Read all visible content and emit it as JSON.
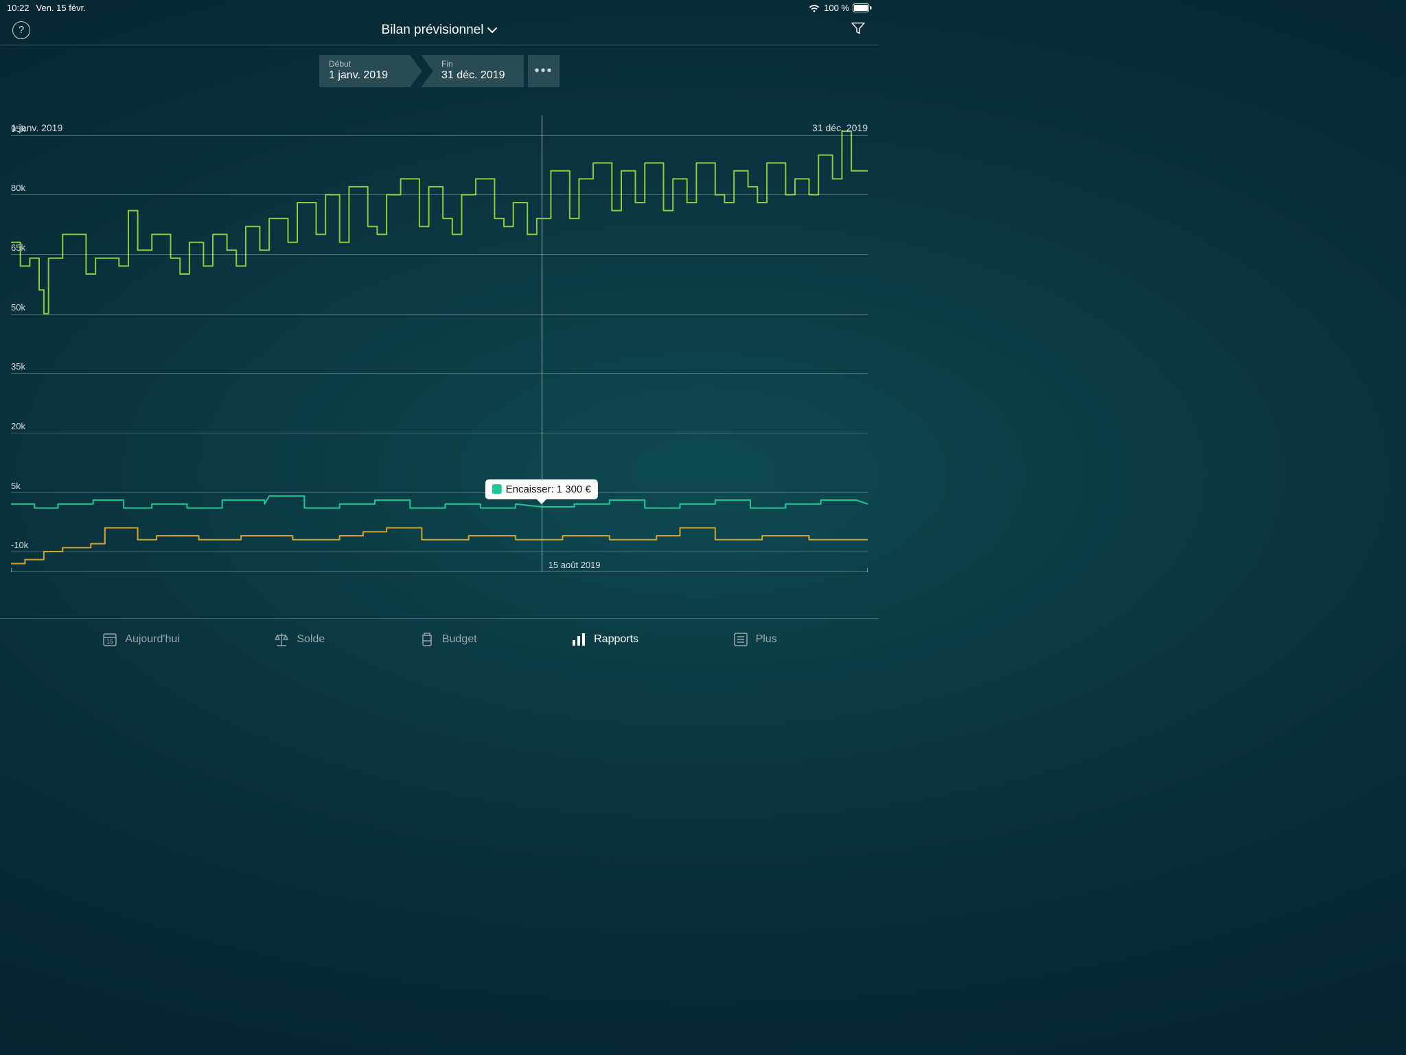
{
  "status": {
    "time": "10:22",
    "date": "Ven. 15 févr.",
    "battery_pct": "100 %"
  },
  "header": {
    "title": "Bilan prévisionnel"
  },
  "date_range": {
    "start_label": "Début",
    "start_value": "1 janv. 2019",
    "end_label": "Fin",
    "end_value": "31 déc. 2019"
  },
  "chart": {
    "type": "line",
    "background": "transparent",
    "grid_color": "rgba(205,214,217,0.35)",
    "y_axis": {
      "ticks": [
        95,
        80,
        65,
        50,
        35,
        20,
        5,
        -10
      ],
      "labels": [
        "95k",
        "80k",
        "65k",
        "50k",
        "35k",
        "20k",
        "5k",
        "-10k"
      ],
      "min": -15,
      "max": 100
    },
    "x_axis": {
      "min": 0,
      "max": 365,
      "start_label": "1 janv. 2019",
      "end_label": "31 déc. 2019"
    },
    "cursor": {
      "x_day": 226,
      "date_label": "15 août 2019"
    },
    "tooltip": {
      "swatch_color": "#1ec996",
      "label": "Encaisser: 1 300 €",
      "y_value": 1.3
    },
    "series": [
      {
        "name": "balance",
        "color": "#8ecb3a",
        "width": 2,
        "data": [
          [
            0,
            68
          ],
          [
            4,
            68
          ],
          [
            4,
            62
          ],
          [
            8,
            62
          ],
          [
            8,
            64
          ],
          [
            12,
            64
          ],
          [
            12,
            56
          ],
          [
            14,
            56
          ],
          [
            14,
            50
          ],
          [
            16,
            50
          ],
          [
            16,
            64
          ],
          [
            22,
            64
          ],
          [
            22,
            70
          ],
          [
            32,
            70
          ],
          [
            32,
            60
          ],
          [
            36,
            60
          ],
          [
            36,
            64
          ],
          [
            46,
            64
          ],
          [
            46,
            62
          ],
          [
            50,
            62
          ],
          [
            50,
            76
          ],
          [
            54,
            76
          ],
          [
            54,
            66
          ],
          [
            60,
            66
          ],
          [
            60,
            70
          ],
          [
            68,
            70
          ],
          [
            68,
            64
          ],
          [
            72,
            64
          ],
          [
            72,
            60
          ],
          [
            76,
            60
          ],
          [
            76,
            68
          ],
          [
            82,
            68
          ],
          [
            82,
            62
          ],
          [
            86,
            62
          ],
          [
            86,
            70
          ],
          [
            92,
            70
          ],
          [
            92,
            66
          ],
          [
            96,
            66
          ],
          [
            96,
            62
          ],
          [
            100,
            62
          ],
          [
            100,
            72
          ],
          [
            106,
            72
          ],
          [
            106,
            66
          ],
          [
            110,
            66
          ],
          [
            110,
            74
          ],
          [
            118,
            74
          ],
          [
            118,
            68
          ],
          [
            122,
            68
          ],
          [
            122,
            78
          ],
          [
            130,
            78
          ],
          [
            130,
            70
          ],
          [
            134,
            70
          ],
          [
            134,
            80
          ],
          [
            140,
            80
          ],
          [
            140,
            68
          ],
          [
            144,
            68
          ],
          [
            144,
            82
          ],
          [
            152,
            82
          ],
          [
            152,
            72
          ],
          [
            156,
            72
          ],
          [
            156,
            70
          ],
          [
            160,
            70
          ],
          [
            160,
            80
          ],
          [
            166,
            80
          ],
          [
            166,
            84
          ],
          [
            174,
            84
          ],
          [
            174,
            72
          ],
          [
            178,
            72
          ],
          [
            178,
            82
          ],
          [
            184,
            82
          ],
          [
            184,
            74
          ],
          [
            188,
            74
          ],
          [
            188,
            70
          ],
          [
            192,
            70
          ],
          [
            192,
            80
          ],
          [
            198,
            80
          ],
          [
            198,
            84
          ],
          [
            206,
            84
          ],
          [
            206,
            74
          ],
          [
            210,
            74
          ],
          [
            210,
            72
          ],
          [
            214,
            72
          ],
          [
            214,
            78
          ],
          [
            220,
            78
          ],
          [
            220,
            70
          ],
          [
            224,
            70
          ],
          [
            224,
            74
          ],
          [
            230,
            74
          ],
          [
            230,
            86
          ],
          [
            238,
            86
          ],
          [
            238,
            74
          ],
          [
            242,
            74
          ],
          [
            242,
            84
          ],
          [
            248,
            84
          ],
          [
            248,
            88
          ],
          [
            256,
            88
          ],
          [
            256,
            76
          ],
          [
            260,
            76
          ],
          [
            260,
            86
          ],
          [
            266,
            86
          ],
          [
            266,
            78
          ],
          [
            270,
            78
          ],
          [
            270,
            88
          ],
          [
            278,
            88
          ],
          [
            278,
            76
          ],
          [
            282,
            76
          ],
          [
            282,
            84
          ],
          [
            288,
            84
          ],
          [
            288,
            78
          ],
          [
            292,
            78
          ],
          [
            292,
            88
          ],
          [
            300,
            88
          ],
          [
            300,
            80
          ],
          [
            304,
            80
          ],
          [
            304,
            78
          ],
          [
            308,
            78
          ],
          [
            308,
            86
          ],
          [
            314,
            86
          ],
          [
            314,
            82
          ],
          [
            318,
            82
          ],
          [
            318,
            78
          ],
          [
            322,
            78
          ],
          [
            322,
            88
          ],
          [
            330,
            88
          ],
          [
            330,
            80
          ],
          [
            334,
            80
          ],
          [
            334,
            84
          ],
          [
            340,
            84
          ],
          [
            340,
            80
          ],
          [
            344,
            80
          ],
          [
            344,
            90
          ],
          [
            350,
            90
          ],
          [
            350,
            84
          ],
          [
            354,
            84
          ],
          [
            354,
            96
          ],
          [
            358,
            96
          ],
          [
            358,
            86
          ],
          [
            365,
            86
          ]
        ]
      },
      {
        "name": "cash_in",
        "color": "#1ec996",
        "width": 2,
        "data": [
          [
            0,
            2
          ],
          [
            10,
            2
          ],
          [
            10,
            1
          ],
          [
            20,
            1
          ],
          [
            20,
            2
          ],
          [
            35,
            2
          ],
          [
            35,
            3
          ],
          [
            48,
            3
          ],
          [
            48,
            1
          ],
          [
            60,
            1
          ],
          [
            60,
            2
          ],
          [
            75,
            2
          ],
          [
            75,
            1
          ],
          [
            90,
            1
          ],
          [
            90,
            3
          ],
          [
            108,
            3
          ],
          [
            108,
            2
          ],
          [
            110,
            4
          ],
          [
            125,
            4
          ],
          [
            125,
            1
          ],
          [
            140,
            1
          ],
          [
            140,
            2
          ],
          [
            155,
            2
          ],
          [
            155,
            3
          ],
          [
            170,
            3
          ],
          [
            170,
            1
          ],
          [
            185,
            1
          ],
          [
            185,
            2
          ],
          [
            200,
            2
          ],
          [
            200,
            1
          ],
          [
            215,
            1
          ],
          [
            215,
            2
          ],
          [
            226,
            1.3
          ],
          [
            240,
            1.3
          ],
          [
            240,
            2
          ],
          [
            255,
            2
          ],
          [
            255,
            3
          ],
          [
            270,
            3
          ],
          [
            270,
            1
          ],
          [
            285,
            1
          ],
          [
            285,
            2
          ],
          [
            300,
            2
          ],
          [
            300,
            3
          ],
          [
            315,
            3
          ],
          [
            315,
            1
          ],
          [
            330,
            1
          ],
          [
            330,
            2
          ],
          [
            345,
            2
          ],
          [
            345,
            3
          ],
          [
            360,
            3
          ],
          [
            365,
            2
          ]
        ]
      },
      {
        "name": "cash_out",
        "color": "#d4a52a",
        "width": 2,
        "data": [
          [
            0,
            -13
          ],
          [
            6,
            -13
          ],
          [
            6,
            -12
          ],
          [
            14,
            -12
          ],
          [
            14,
            -10
          ],
          [
            22,
            -10
          ],
          [
            22,
            -9
          ],
          [
            34,
            -9
          ],
          [
            34,
            -8
          ],
          [
            40,
            -8
          ],
          [
            40,
            -4
          ],
          [
            54,
            -4
          ],
          [
            54,
            -7
          ],
          [
            62,
            -7
          ],
          [
            62,
            -6
          ],
          [
            80,
            -6
          ],
          [
            80,
            -7
          ],
          [
            98,
            -7
          ],
          [
            98,
            -6
          ],
          [
            120,
            -6
          ],
          [
            120,
            -7
          ],
          [
            140,
            -7
          ],
          [
            140,
            -6
          ],
          [
            150,
            -6
          ],
          [
            150,
            -5
          ],
          [
            160,
            -5
          ],
          [
            160,
            -4
          ],
          [
            175,
            -4
          ],
          [
            175,
            -7
          ],
          [
            195,
            -7
          ],
          [
            195,
            -6
          ],
          [
            215,
            -6
          ],
          [
            215,
            -7
          ],
          [
            235,
            -7
          ],
          [
            235,
            -6
          ],
          [
            255,
            -6
          ],
          [
            255,
            -7
          ],
          [
            275,
            -7
          ],
          [
            275,
            -6
          ],
          [
            285,
            -6
          ],
          [
            285,
            -4
          ],
          [
            300,
            -4
          ],
          [
            300,
            -7
          ],
          [
            320,
            -7
          ],
          [
            320,
            -6
          ],
          [
            340,
            -6
          ],
          [
            340,
            -7
          ],
          [
            365,
            -7
          ]
        ]
      }
    ]
  },
  "tabs": {
    "items": [
      {
        "id": "today",
        "label": "Aujourd'hui",
        "active": false
      },
      {
        "id": "balance",
        "label": "Solde",
        "active": false
      },
      {
        "id": "budget",
        "label": "Budget",
        "active": false
      },
      {
        "id": "reports",
        "label": "Rapports",
        "active": true
      },
      {
        "id": "more",
        "label": "Plus",
        "active": false
      }
    ]
  }
}
